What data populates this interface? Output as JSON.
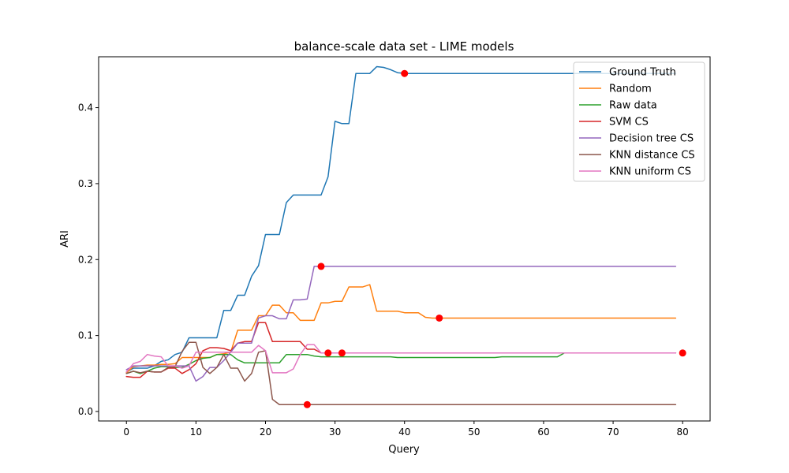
{
  "chart_data": {
    "type": "line",
    "title": "balance-scale data set - LIME models",
    "xlabel": "Query",
    "ylabel": "ARI",
    "xlim": [
      -4,
      83.95
    ],
    "ylim": [
      -0.0125,
      0.467
    ],
    "xticks": [
      0,
      10,
      20,
      30,
      40,
      50,
      60,
      70,
      80
    ],
    "yticks": [
      0.0,
      0.1,
      0.2,
      0.3,
      0.4
    ],
    "ytick_labels": [
      "0.0",
      "0.1",
      "0.2",
      "0.3",
      "0.4"
    ],
    "grid": false,
    "legend_position": "upper-right",
    "series": [
      {
        "name": "Ground Truth",
        "color": "#1f77b4",
        "values": [
          0.052,
          0.057,
          0.057,
          0.057,
          0.06,
          0.066,
          0.068,
          0.075,
          0.078,
          0.097,
          0.097,
          0.097,
          0.097,
          0.097,
          0.133,
          0.133,
          0.153,
          0.153,
          0.178,
          0.192,
          0.233,
          0.233,
          0.233,
          0.275,
          0.285,
          0.285,
          0.285,
          0.285,
          0.285,
          0.309,
          0.382,
          0.379,
          0.379,
          0.445,
          0.445,
          0.445,
          0.454,
          0.453,
          0.45,
          0.446,
          0.445,
          0.445,
          0.445,
          0.445,
          0.445,
          0.445,
          0.445,
          0.445,
          0.445,
          0.445,
          0.445,
          0.445,
          0.445,
          0.445,
          0.445,
          0.445,
          0.445,
          0.445,
          0.445,
          0.445,
          0.445,
          0.445,
          0.445,
          0.445,
          0.445,
          0.445,
          0.445,
          0.445,
          0.445,
          0.445,
          0.445,
          0.445,
          0.445,
          0.445,
          0.445,
          0.445,
          0.445,
          0.445,
          0.445,
          0.445
        ],
        "marker": {
          "x": 40,
          "y": 0.445
        }
      },
      {
        "name": "Random",
        "color": "#ff7f0e",
        "values": [
          0.051,
          0.059,
          0.06,
          0.061,
          0.061,
          0.062,
          0.062,
          0.063,
          0.071,
          0.071,
          0.071,
          0.071,
          0.071,
          0.075,
          0.076,
          0.078,
          0.107,
          0.107,
          0.107,
          0.126,
          0.126,
          0.14,
          0.14,
          0.13,
          0.13,
          0.12,
          0.12,
          0.12,
          0.143,
          0.143,
          0.145,
          0.145,
          0.164,
          0.164,
          0.164,
          0.167,
          0.132,
          0.132,
          0.132,
          0.132,
          0.13,
          0.13,
          0.13,
          0.124,
          0.123,
          0.123,
          0.123,
          0.123,
          0.123,
          0.123,
          0.123,
          0.123,
          0.123,
          0.123,
          0.123,
          0.123,
          0.123,
          0.123,
          0.123,
          0.123,
          0.123,
          0.123,
          0.123,
          0.123,
          0.123,
          0.123,
          0.123,
          0.123,
          0.123,
          0.123,
          0.123,
          0.123,
          0.123,
          0.123,
          0.123,
          0.123,
          0.123,
          0.123,
          0.123,
          0.123
        ],
        "marker": {
          "x": 45,
          "y": 0.123
        }
      },
      {
        "name": "Raw data",
        "color": "#2ca02c",
        "values": [
          0.05,
          0.053,
          0.05,
          0.053,
          0.057,
          0.059,
          0.059,
          0.058,
          0.058,
          0.062,
          0.067,
          0.07,
          0.071,
          0.075,
          0.075,
          0.075,
          0.068,
          0.064,
          0.064,
          0.064,
          0.064,
          0.064,
          0.064,
          0.075,
          0.075,
          0.075,
          0.075,
          0.073,
          0.072,
          0.072,
          0.072,
          0.072,
          0.072,
          0.072,
          0.072,
          0.072,
          0.072,
          0.072,
          0.072,
          0.071,
          0.071,
          0.071,
          0.071,
          0.071,
          0.071,
          0.071,
          0.071,
          0.071,
          0.071,
          0.071,
          0.071,
          0.071,
          0.071,
          0.071,
          0.072,
          0.072,
          0.072,
          0.072,
          0.072,
          0.072,
          0.072,
          0.072,
          0.072,
          0.077,
          0.077,
          0.077,
          0.077,
          0.077,
          0.077,
          0.077,
          0.077,
          0.077,
          0.077,
          0.077,
          0.077,
          0.077,
          0.077,
          0.077,
          0.077,
          0.077
        ],
        "marker": {
          "x": 80,
          "y": 0.077
        }
      },
      {
        "name": "SVM CS",
        "color": "#d62728",
        "values": [
          0.046,
          0.045,
          0.045,
          0.053,
          0.052,
          0.052,
          0.057,
          0.057,
          0.05,
          0.055,
          0.063,
          0.08,
          0.084,
          0.084,
          0.083,
          0.08,
          0.09,
          0.092,
          0.092,
          0.117,
          0.117,
          0.092,
          0.092,
          0.092,
          0.092,
          0.092,
          0.082,
          0.082,
          0.077,
          0.077,
          0.077,
          0.077,
          0.077,
          0.077,
          0.077,
          0.077,
          0.077,
          0.077,
          0.077,
          0.077,
          0.077,
          0.077,
          0.077,
          0.077,
          0.077,
          0.077,
          0.077,
          0.077,
          0.077,
          0.077,
          0.077,
          0.077,
          0.077,
          0.077,
          0.077,
          0.077,
          0.077,
          0.077,
          0.077,
          0.077,
          0.077,
          0.077,
          0.077,
          0.077,
          0.077,
          0.077,
          0.077,
          0.077,
          0.077,
          0.077,
          0.077,
          0.077,
          0.077,
          0.077,
          0.077,
          0.077,
          0.077,
          0.077,
          0.077,
          0.077
        ],
        "marker": {
          "x": 31,
          "y": 0.077
        }
      },
      {
        "name": "Decision tree CS",
        "color": "#9467bd",
        "values": [
          0.055,
          0.06,
          0.06,
          0.06,
          0.06,
          0.06,
          0.06,
          0.06,
          0.06,
          0.06,
          0.04,
          0.046,
          0.058,
          0.058,
          0.067,
          0.078,
          0.09,
          0.09,
          0.09,
          0.123,
          0.126,
          0.126,
          0.122,
          0.122,
          0.147,
          0.147,
          0.148,
          0.191,
          0.191,
          0.191,
          0.191,
          0.191,
          0.191,
          0.191,
          0.191,
          0.191,
          0.191,
          0.191,
          0.191,
          0.191,
          0.191,
          0.191,
          0.191,
          0.191,
          0.191,
          0.191,
          0.191,
          0.191,
          0.191,
          0.191,
          0.191,
          0.191,
          0.191,
          0.191,
          0.191,
          0.191,
          0.191,
          0.191,
          0.191,
          0.191,
          0.191,
          0.191,
          0.191,
          0.191,
          0.191,
          0.191,
          0.191,
          0.191,
          0.191,
          0.191,
          0.191,
          0.191,
          0.191,
          0.191,
          0.191,
          0.191,
          0.191,
          0.191,
          0.191,
          0.191
        ],
        "marker": {
          "x": 28,
          "y": 0.191
        }
      },
      {
        "name": "KNN distance CS",
        "color": "#8c564b",
        "values": [
          0.05,
          0.053,
          0.051,
          0.053,
          0.052,
          0.052,
          0.058,
          0.059,
          0.079,
          0.091,
          0.091,
          0.058,
          0.05,
          0.058,
          0.075,
          0.057,
          0.057,
          0.04,
          0.05,
          0.078,
          0.08,
          0.016,
          0.009,
          0.009,
          0.009,
          0.009,
          0.009,
          0.009,
          0.009,
          0.009,
          0.009,
          0.009,
          0.009,
          0.009,
          0.009,
          0.009,
          0.009,
          0.009,
          0.009,
          0.009,
          0.009,
          0.009,
          0.009,
          0.009,
          0.009,
          0.009,
          0.009,
          0.009,
          0.009,
          0.009,
          0.009,
          0.009,
          0.009,
          0.009,
          0.009,
          0.009,
          0.009,
          0.009,
          0.009,
          0.009,
          0.009,
          0.009,
          0.009,
          0.009,
          0.009,
          0.009,
          0.009,
          0.009,
          0.009,
          0.009,
          0.009,
          0.009,
          0.009,
          0.009,
          0.009,
          0.009,
          0.009,
          0.009,
          0.009,
          0.009
        ],
        "marker": {
          "x": 26,
          "y": 0.009
        }
      },
      {
        "name": "KNN uniform CS",
        "color": "#e377c2",
        "values": [
          0.052,
          0.063,
          0.066,
          0.075,
          0.073,
          0.072,
          0.06,
          0.06,
          0.057,
          0.06,
          0.078,
          0.078,
          0.078,
          0.078,
          0.078,
          0.078,
          0.078,
          0.078,
          0.078,
          0.087,
          0.08,
          0.051,
          0.051,
          0.051,
          0.056,
          0.075,
          0.088,
          0.088,
          0.077,
          0.077,
          0.077,
          0.077,
          0.077,
          0.077,
          0.077,
          0.077,
          0.077,
          0.077,
          0.077,
          0.077,
          0.077,
          0.077,
          0.077,
          0.077,
          0.077,
          0.077,
          0.077,
          0.077,
          0.077,
          0.077,
          0.077,
          0.077,
          0.077,
          0.077,
          0.077,
          0.077,
          0.077,
          0.077,
          0.077,
          0.077,
          0.077,
          0.077,
          0.077,
          0.077,
          0.077,
          0.077,
          0.077,
          0.077,
          0.077,
          0.077,
          0.077,
          0.077,
          0.077,
          0.077,
          0.077,
          0.077,
          0.077,
          0.077,
          0.077,
          0.077
        ],
        "marker": {
          "x": 29,
          "y": 0.077
        }
      }
    ],
    "marker_color": "#ff0000"
  }
}
